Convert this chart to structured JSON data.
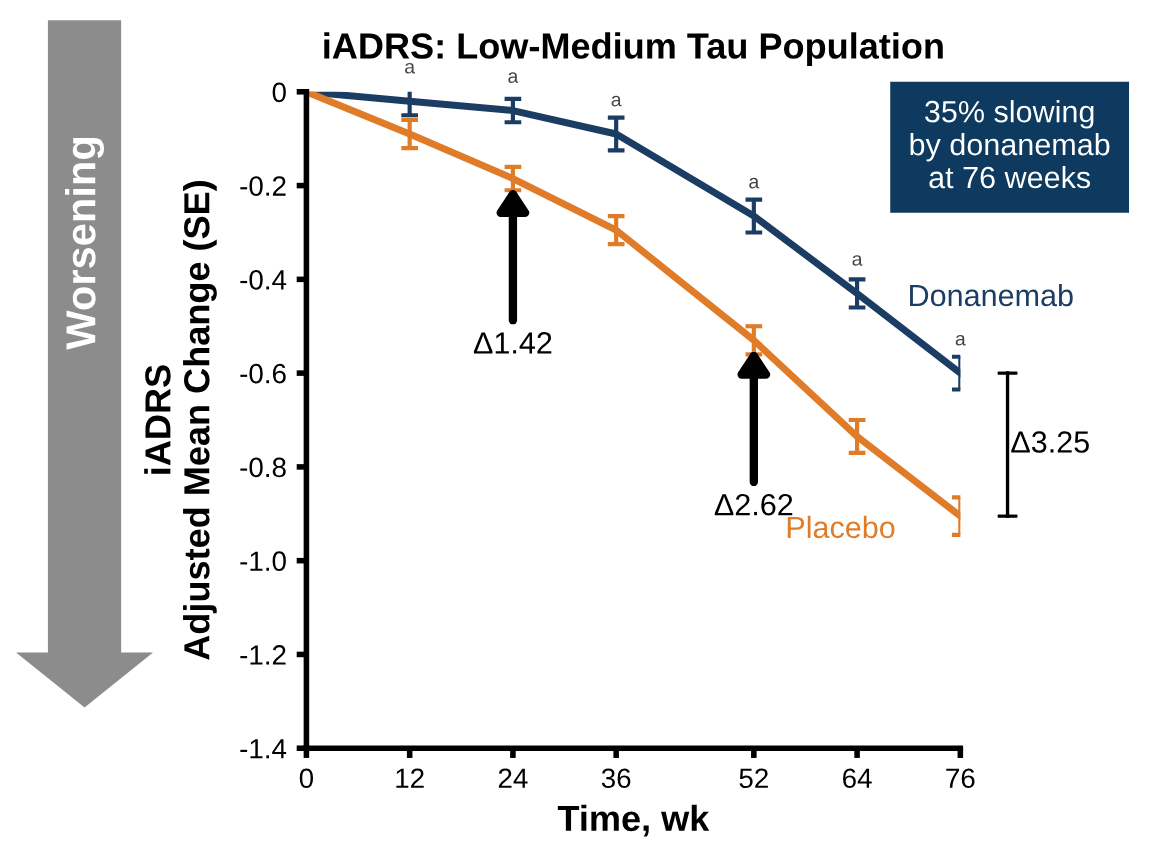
{
  "chart_data": {
    "type": "line",
    "title": "iADRS: Low-Medium Tau Population",
    "xlabel": "Time, wk",
    "ylabel": "iADRS\nAdjusted Mean Change (SE)",
    "x": [
      0,
      12,
      24,
      36,
      52,
      64,
      76
    ],
    "series": [
      {
        "name": "Donanemab",
        "color": "#1c3d63",
        "values": [
          0,
          -0.02,
          -0.04,
          -0.09,
          -0.265,
          -0.43,
          -0.6
        ],
        "errors": [
          null,
          0.03,
          0.025,
          0.035,
          0.035,
          0.03,
          0.035
        ]
      },
      {
        "name": "Placebo",
        "color": "#e07b28",
        "values": [
          0,
          -0.09,
          -0.185,
          -0.295,
          -0.53,
          -0.735,
          -0.905
        ],
        "errors": [
          null,
          0.03,
          0.025,
          0.03,
          0.03,
          0.035,
          0.04
        ]
      }
    ],
    "xlim": [
      0,
      76
    ],
    "xticks": [
      0,
      12,
      24,
      36,
      52,
      64,
      76
    ],
    "ylim": [
      -1.4,
      0
    ],
    "yticks": [
      -1.4,
      -1.2,
      {
        "value": -1.0,
        "label": "-1.0"
      },
      -0.8,
      -0.6,
      -0.4,
      -0.2,
      0
    ],
    "grid": false,
    "legend": false,
    "marker": "none",
    "line_style": "solid",
    "annotations": [
      "35% slowing\nby donanemab\nat 76 weeks",
      "Worsening",
      "Δ3.25",
      {
        "text": "a",
        "x": 12,
        "y": -0.02
      },
      {
        "text": "a",
        "x": 24,
        "y": -0.04
      },
      {
        "text": "a",
        "x": 36,
        "y": -0.09
      },
      {
        "text": "a",
        "x": 52,
        "y": -0.265
      },
      {
        "text": "a",
        "x": 64,
        "y": -0.43
      },
      {
        "text": "a",
        "x": 76,
        "y": -0.6
      },
      {
        "text": "Δ1.42",
        "x": 24,
        "y": -0.185
      },
      {
        "text": "Δ2.62",
        "x": 52,
        "y": -0.53
      }
    ]
  }
}
